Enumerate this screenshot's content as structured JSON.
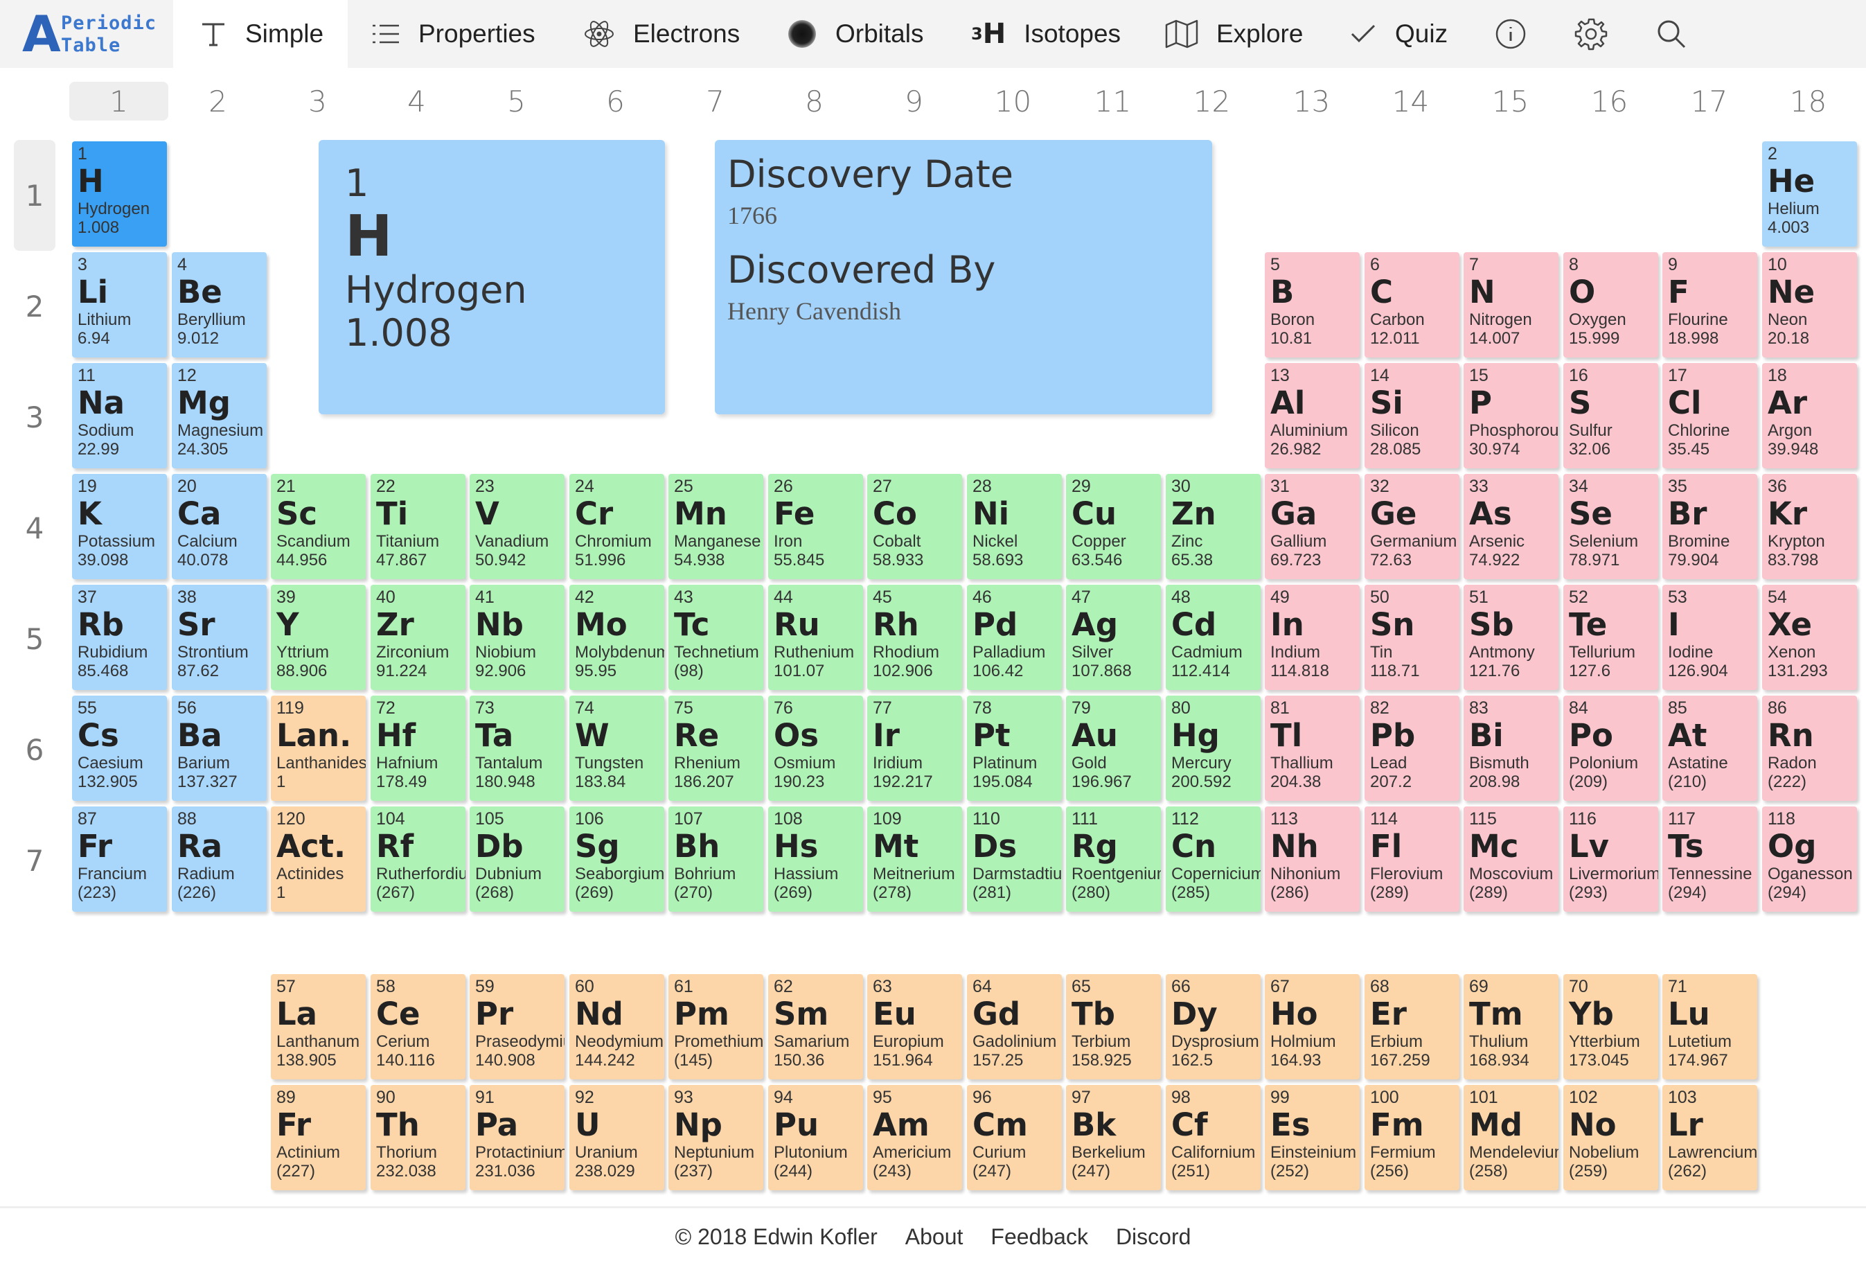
{
  "logo": {
    "letter": "A",
    "line1": "Periodic",
    "line2": "Table"
  },
  "nav": {
    "simple": "Simple",
    "properties": "Properties",
    "electrons": "Electrons",
    "orbitals": "Orbitals",
    "isotopes_sup": "3",
    "isotopes_h": "H",
    "isotopes": "Isotopes",
    "explore": "Explore",
    "quiz": "Quiz"
  },
  "groups": [
    "1",
    "2",
    "3",
    "4",
    "5",
    "6",
    "7",
    "8",
    "9",
    "10",
    "11",
    "12",
    "13",
    "14",
    "15",
    "16",
    "17",
    "18"
  ],
  "periods": [
    "1",
    "2",
    "3",
    "4",
    "5",
    "6",
    "7"
  ],
  "selected": {
    "number": "1",
    "symbol": "H",
    "name": "Hydrogen",
    "mass": "1.008"
  },
  "properties": {
    "label1": "Discovery Date",
    "value1": "1766",
    "label2": "Discovered By",
    "value2": "Henry Cavendish"
  },
  "colors": {
    "s_block": "#a9d6fb",
    "selected": "#3aa0f3",
    "d_block": "#aef2b6",
    "p_block": "#fac5cd",
    "f_block": "#fcd6a8",
    "logo": "#2d63b8"
  },
  "elements": [
    {
      "n": "1",
      "s": "H",
      "name": "Hydrogen",
      "m": "1.008",
      "period": 1,
      "group": 1,
      "cat": "s"
    },
    {
      "n": "2",
      "s": "He",
      "name": "Helium",
      "m": "4.003",
      "period": 1,
      "group": 18,
      "cat": "s"
    },
    {
      "n": "3",
      "s": "Li",
      "name": "Lithium",
      "m": "6.94",
      "period": 2,
      "group": 1,
      "cat": "s"
    },
    {
      "n": "4",
      "s": "Be",
      "name": "Beryllium",
      "m": "9.012",
      "period": 2,
      "group": 2,
      "cat": "s"
    },
    {
      "n": "5",
      "s": "B",
      "name": "Boron",
      "m": "10.81",
      "period": 2,
      "group": 13,
      "cat": "p"
    },
    {
      "n": "6",
      "s": "C",
      "name": "Carbon",
      "m": "12.011",
      "period": 2,
      "group": 14,
      "cat": "p"
    },
    {
      "n": "7",
      "s": "N",
      "name": "Nitrogen",
      "m": "14.007",
      "period": 2,
      "group": 15,
      "cat": "p"
    },
    {
      "n": "8",
      "s": "O",
      "name": "Oxygen",
      "m": "15.999",
      "period": 2,
      "group": 16,
      "cat": "p"
    },
    {
      "n": "9",
      "s": "F",
      "name": "Flourine",
      "m": "18.998",
      "period": 2,
      "group": 17,
      "cat": "p"
    },
    {
      "n": "10",
      "s": "Ne",
      "name": "Neon",
      "m": "20.18",
      "period": 2,
      "group": 18,
      "cat": "p"
    },
    {
      "n": "11",
      "s": "Na",
      "name": "Sodium",
      "m": "22.99",
      "period": 3,
      "group": 1,
      "cat": "s"
    },
    {
      "n": "12",
      "s": "Mg",
      "name": "Magnesium",
      "m": "24.305",
      "period": 3,
      "group": 2,
      "cat": "s"
    },
    {
      "n": "13",
      "s": "Al",
      "name": "Aluminium",
      "m": "26.982",
      "period": 3,
      "group": 13,
      "cat": "p"
    },
    {
      "n": "14",
      "s": "Si",
      "name": "Silicon",
      "m": "28.085",
      "period": 3,
      "group": 14,
      "cat": "p"
    },
    {
      "n": "15",
      "s": "P",
      "name": "Phosphorous",
      "m": "30.974",
      "period": 3,
      "group": 15,
      "cat": "p"
    },
    {
      "n": "16",
      "s": "S",
      "name": "Sulfur",
      "m": "32.06",
      "period": 3,
      "group": 16,
      "cat": "p"
    },
    {
      "n": "17",
      "s": "Cl",
      "name": "Chlorine",
      "m": "35.45",
      "period": 3,
      "group": 17,
      "cat": "p"
    },
    {
      "n": "18",
      "s": "Ar",
      "name": "Argon",
      "m": "39.948",
      "period": 3,
      "group": 18,
      "cat": "p"
    },
    {
      "n": "19",
      "s": "K",
      "name": "Potassium",
      "m": "39.098",
      "period": 4,
      "group": 1,
      "cat": "s"
    },
    {
      "n": "20",
      "s": "Ca",
      "name": "Calcium",
      "m": "40.078",
      "period": 4,
      "group": 2,
      "cat": "s"
    },
    {
      "n": "21",
      "s": "Sc",
      "name": "Scandium",
      "m": "44.956",
      "period": 4,
      "group": 3,
      "cat": "d"
    },
    {
      "n": "22",
      "s": "Ti",
      "name": "Titanium",
      "m": "47.867",
      "period": 4,
      "group": 4,
      "cat": "d"
    },
    {
      "n": "23",
      "s": "V",
      "name": "Vanadium",
      "m": "50.942",
      "period": 4,
      "group": 5,
      "cat": "d"
    },
    {
      "n": "24",
      "s": "Cr",
      "name": "Chromium",
      "m": "51.996",
      "period": 4,
      "group": 6,
      "cat": "d"
    },
    {
      "n": "25",
      "s": "Mn",
      "name": "Manganese",
      "m": "54.938",
      "period": 4,
      "group": 7,
      "cat": "d"
    },
    {
      "n": "26",
      "s": "Fe",
      "name": "Iron",
      "m": "55.845",
      "period": 4,
      "group": 8,
      "cat": "d"
    },
    {
      "n": "27",
      "s": "Co",
      "name": "Cobalt",
      "m": "58.933",
      "period": 4,
      "group": 9,
      "cat": "d"
    },
    {
      "n": "28",
      "s": "Ni",
      "name": "Nickel",
      "m": "58.693",
      "period": 4,
      "group": 10,
      "cat": "d"
    },
    {
      "n": "29",
      "s": "Cu",
      "name": "Copper",
      "m": "63.546",
      "period": 4,
      "group": 11,
      "cat": "d"
    },
    {
      "n": "30",
      "s": "Zn",
      "name": "Zinc",
      "m": "65.38",
      "period": 4,
      "group": 12,
      "cat": "d"
    },
    {
      "n": "31",
      "s": "Ga",
      "name": "Gallium",
      "m": "69.723",
      "period": 4,
      "group": 13,
      "cat": "p"
    },
    {
      "n": "32",
      "s": "Ge",
      "name": "Germanium",
      "m": "72.63",
      "period": 4,
      "group": 14,
      "cat": "p"
    },
    {
      "n": "33",
      "s": "As",
      "name": "Arsenic",
      "m": "74.922",
      "period": 4,
      "group": 15,
      "cat": "p"
    },
    {
      "n": "34",
      "s": "Se",
      "name": "Selenium",
      "m": "78.971",
      "period": 4,
      "group": 16,
      "cat": "p"
    },
    {
      "n": "35",
      "s": "Br",
      "name": "Bromine",
      "m": "79.904",
      "period": 4,
      "group": 17,
      "cat": "p"
    },
    {
      "n": "36",
      "s": "Kr",
      "name": "Krypton",
      "m": "83.798",
      "period": 4,
      "group": 18,
      "cat": "p"
    },
    {
      "n": "37",
      "s": "Rb",
      "name": "Rubidium",
      "m": "85.468",
      "period": 5,
      "group": 1,
      "cat": "s"
    },
    {
      "n": "38",
      "s": "Sr",
      "name": "Strontium",
      "m": "87.62",
      "period": 5,
      "group": 2,
      "cat": "s"
    },
    {
      "n": "39",
      "s": "Y",
      "name": "Yttrium",
      "m": "88.906",
      "period": 5,
      "group": 3,
      "cat": "d"
    },
    {
      "n": "40",
      "s": "Zr",
      "name": "Zirconium",
      "m": "91.224",
      "period": 5,
      "group": 4,
      "cat": "d"
    },
    {
      "n": "41",
      "s": "Nb",
      "name": "Niobium",
      "m": "92.906",
      "period": 5,
      "group": 5,
      "cat": "d"
    },
    {
      "n": "42",
      "s": "Mo",
      "name": "Molybdenum",
      "m": "95.95",
      "period": 5,
      "group": 6,
      "cat": "d"
    },
    {
      "n": "43",
      "s": "Tc",
      "name": "Technetium",
      "m": "(98)",
      "period": 5,
      "group": 7,
      "cat": "d"
    },
    {
      "n": "44",
      "s": "Ru",
      "name": "Ruthenium",
      "m": "101.07",
      "period": 5,
      "group": 8,
      "cat": "d"
    },
    {
      "n": "45",
      "s": "Rh",
      "name": "Rhodium",
      "m": "102.906",
      "period": 5,
      "group": 9,
      "cat": "d"
    },
    {
      "n": "46",
      "s": "Pd",
      "name": "Palladium",
      "m": "106.42",
      "period": 5,
      "group": 10,
      "cat": "d"
    },
    {
      "n": "47",
      "s": "Ag",
      "name": "Silver",
      "m": "107.868",
      "period": 5,
      "group": 11,
      "cat": "d"
    },
    {
      "n": "48",
      "s": "Cd",
      "name": "Cadmium",
      "m": "112.414",
      "period": 5,
      "group": 12,
      "cat": "d"
    },
    {
      "n": "49",
      "s": "In",
      "name": "Indium",
      "m": "114.818",
      "period": 5,
      "group": 13,
      "cat": "p"
    },
    {
      "n": "50",
      "s": "Sn",
      "name": "Tin",
      "m": "118.71",
      "period": 5,
      "group": 14,
      "cat": "p"
    },
    {
      "n": "51",
      "s": "Sb",
      "name": "Antmony",
      "m": "121.76",
      "period": 5,
      "group": 15,
      "cat": "p"
    },
    {
      "n": "52",
      "s": "Te",
      "name": "Tellurium",
      "m": "127.6",
      "period": 5,
      "group": 16,
      "cat": "p"
    },
    {
      "n": "53",
      "s": "I",
      "name": "Iodine",
      "m": "126.904",
      "period": 5,
      "group": 17,
      "cat": "p"
    },
    {
      "n": "54",
      "s": "Xe",
      "name": "Xenon",
      "m": "131.293",
      "period": 5,
      "group": 18,
      "cat": "p"
    },
    {
      "n": "55",
      "s": "Cs",
      "name": "Caesium",
      "m": "132.905",
      "period": 6,
      "group": 1,
      "cat": "s"
    },
    {
      "n": "56",
      "s": "Ba",
      "name": "Barium",
      "m": "137.327",
      "period": 6,
      "group": 2,
      "cat": "s"
    },
    {
      "n": "119",
      "s": "Lan.",
      "name": "Lanthanides",
      "m": "1",
      "period": 6,
      "group": 3,
      "cat": "f"
    },
    {
      "n": "72",
      "s": "Hf",
      "name": "Hafnium",
      "m": "178.49",
      "period": 6,
      "group": 4,
      "cat": "d"
    },
    {
      "n": "73",
      "s": "Ta",
      "name": "Tantalum",
      "m": "180.948",
      "period": 6,
      "group": 5,
      "cat": "d"
    },
    {
      "n": "74",
      "s": "W",
      "name": "Tungsten",
      "m": "183.84",
      "period": 6,
      "group": 6,
      "cat": "d"
    },
    {
      "n": "75",
      "s": "Re",
      "name": "Rhenium",
      "m": "186.207",
      "period": 6,
      "group": 7,
      "cat": "d"
    },
    {
      "n": "76",
      "s": "Os",
      "name": "Osmium",
      "m": "190.23",
      "period": 6,
      "group": 8,
      "cat": "d"
    },
    {
      "n": "77",
      "s": "Ir",
      "name": "Iridium",
      "m": "192.217",
      "period": 6,
      "group": 9,
      "cat": "d"
    },
    {
      "n": "78",
      "s": "Pt",
      "name": "Platinum",
      "m": "195.084",
      "period": 6,
      "group": 10,
      "cat": "d"
    },
    {
      "n": "79",
      "s": "Au",
      "name": "Gold",
      "m": "196.967",
      "period": 6,
      "group": 11,
      "cat": "d"
    },
    {
      "n": "80",
      "s": "Hg",
      "name": "Mercury",
      "m": "200.592",
      "period": 6,
      "group": 12,
      "cat": "d"
    },
    {
      "n": "81",
      "s": "Tl",
      "name": "Thallium",
      "m": "204.38",
      "period": 6,
      "group": 13,
      "cat": "p"
    },
    {
      "n": "82",
      "s": "Pb",
      "name": "Lead",
      "m": "207.2",
      "period": 6,
      "group": 14,
      "cat": "p"
    },
    {
      "n": "83",
      "s": "Bi",
      "name": "Bismuth",
      "m": "208.98",
      "period": 6,
      "group": 15,
      "cat": "p"
    },
    {
      "n": "84",
      "s": "Po",
      "name": "Polonium",
      "m": "(209)",
      "period": 6,
      "group": 16,
      "cat": "p"
    },
    {
      "n": "85",
      "s": "At",
      "name": "Astatine",
      "m": "(210)",
      "period": 6,
      "group": 17,
      "cat": "p"
    },
    {
      "n": "86",
      "s": "Rn",
      "name": "Radon",
      "m": "(222)",
      "period": 6,
      "group": 18,
      "cat": "p"
    },
    {
      "n": "87",
      "s": "Fr",
      "name": "Francium",
      "m": "(223)",
      "period": 7,
      "group": 1,
      "cat": "s"
    },
    {
      "n": "88",
      "s": "Ra",
      "name": "Radium",
      "m": "(226)",
      "period": 7,
      "group": 2,
      "cat": "s"
    },
    {
      "n": "120",
      "s": "Act.",
      "name": "Actinides",
      "m": "1",
      "period": 7,
      "group": 3,
      "cat": "f"
    },
    {
      "n": "104",
      "s": "Rf",
      "name": "Rutherfordium",
      "m": "(267)",
      "period": 7,
      "group": 4,
      "cat": "d"
    },
    {
      "n": "105",
      "s": "Db",
      "name": "Dubnium",
      "m": "(268)",
      "period": 7,
      "group": 5,
      "cat": "d"
    },
    {
      "n": "106",
      "s": "Sg",
      "name": "Seaborgium",
      "m": "(269)",
      "period": 7,
      "group": 6,
      "cat": "d"
    },
    {
      "n": "107",
      "s": "Bh",
      "name": "Bohrium",
      "m": "(270)",
      "period": 7,
      "group": 7,
      "cat": "d"
    },
    {
      "n": "108",
      "s": "Hs",
      "name": "Hassium",
      "m": "(269)",
      "period": 7,
      "group": 8,
      "cat": "d"
    },
    {
      "n": "109",
      "s": "Mt",
      "name": "Meitnerium",
      "m": "(278)",
      "period": 7,
      "group": 9,
      "cat": "d"
    },
    {
      "n": "110",
      "s": "Ds",
      "name": "Darmstadtium",
      "m": "(281)",
      "period": 7,
      "group": 10,
      "cat": "d"
    },
    {
      "n": "111",
      "s": "Rg",
      "name": "Roentgenium",
      "m": "(280)",
      "period": 7,
      "group": 11,
      "cat": "d"
    },
    {
      "n": "112",
      "s": "Cn",
      "name": "Copernicium",
      "m": "(285)",
      "period": 7,
      "group": 12,
      "cat": "d"
    },
    {
      "n": "113",
      "s": "Nh",
      "name": "Nihonium",
      "m": "(286)",
      "period": 7,
      "group": 13,
      "cat": "p"
    },
    {
      "n": "114",
      "s": "Fl",
      "name": "Flerovium",
      "m": "(289)",
      "period": 7,
      "group": 14,
      "cat": "p"
    },
    {
      "n": "115",
      "s": "Mc",
      "name": "Moscovium",
      "m": "(289)",
      "period": 7,
      "group": 15,
      "cat": "p"
    },
    {
      "n": "116",
      "s": "Lv",
      "name": "Livermorium",
      "m": "(293)",
      "period": 7,
      "group": 16,
      "cat": "p"
    },
    {
      "n": "117",
      "s": "Ts",
      "name": "Tennessine",
      "m": "(294)",
      "period": 7,
      "group": 17,
      "cat": "p"
    },
    {
      "n": "118",
      "s": "Og",
      "name": "Oganesson",
      "m": "(294)",
      "period": 7,
      "group": 18,
      "cat": "p"
    },
    {
      "n": "57",
      "s": "La",
      "name": "Lanthanum",
      "m": "138.905",
      "period": 9,
      "group": 3,
      "cat": "f"
    },
    {
      "n": "58",
      "s": "Ce",
      "name": "Cerium",
      "m": "140.116",
      "period": 9,
      "group": 4,
      "cat": "f"
    },
    {
      "n": "59",
      "s": "Pr",
      "name": "Praseodymium",
      "m": "140.908",
      "period": 9,
      "group": 5,
      "cat": "f"
    },
    {
      "n": "60",
      "s": "Nd",
      "name": "Neodymium",
      "m": "144.242",
      "period": 9,
      "group": 6,
      "cat": "f"
    },
    {
      "n": "61",
      "s": "Pm",
      "name": "Promethium",
      "m": "(145)",
      "period": 9,
      "group": 7,
      "cat": "f"
    },
    {
      "n": "62",
      "s": "Sm",
      "name": "Samarium",
      "m": "150.36",
      "period": 9,
      "group": 8,
      "cat": "f"
    },
    {
      "n": "63",
      "s": "Eu",
      "name": "Europium",
      "m": "151.964",
      "period": 9,
      "group": 9,
      "cat": "f"
    },
    {
      "n": "64",
      "s": "Gd",
      "name": "Gadolinium",
      "m": "157.25",
      "period": 9,
      "group": 10,
      "cat": "f"
    },
    {
      "n": "65",
      "s": "Tb",
      "name": "Terbium",
      "m": "158.925",
      "period": 9,
      "group": 11,
      "cat": "f"
    },
    {
      "n": "66",
      "s": "Dy",
      "name": "Dysprosium",
      "m": "162.5",
      "period": 9,
      "group": 12,
      "cat": "f"
    },
    {
      "n": "67",
      "s": "Ho",
      "name": "Holmium",
      "m": "164.93",
      "period": 9,
      "group": 13,
      "cat": "f"
    },
    {
      "n": "68",
      "s": "Er",
      "name": "Erbium",
      "m": "167.259",
      "period": 9,
      "group": 14,
      "cat": "f"
    },
    {
      "n": "69",
      "s": "Tm",
      "name": "Thulium",
      "m": "168.934",
      "period": 9,
      "group": 15,
      "cat": "f"
    },
    {
      "n": "70",
      "s": "Yb",
      "name": "Ytterbium",
      "m": "173.045",
      "period": 9,
      "group": 16,
      "cat": "f"
    },
    {
      "n": "71",
      "s": "Lu",
      "name": "Lutetium",
      "m": "174.967",
      "period": 9,
      "group": 17,
      "cat": "f"
    },
    {
      "n": "89",
      "s": "Fr",
      "name": "Actinium",
      "m": "(227)",
      "period": 10,
      "group": 3,
      "cat": "f"
    },
    {
      "n": "90",
      "s": "Th",
      "name": "Thorium",
      "m": "232.038",
      "period": 10,
      "group": 4,
      "cat": "f"
    },
    {
      "n": "91",
      "s": "Pa",
      "name": "Protactinium",
      "m": "231.036",
      "period": 10,
      "group": 5,
      "cat": "f"
    },
    {
      "n": "92",
      "s": "U",
      "name": "Uranium",
      "m": "238.029",
      "period": 10,
      "group": 6,
      "cat": "f"
    },
    {
      "n": "93",
      "s": "Np",
      "name": "Neptunium",
      "m": "(237)",
      "period": 10,
      "group": 7,
      "cat": "f"
    },
    {
      "n": "94",
      "s": "Pu",
      "name": "Plutonium",
      "m": "(244)",
      "period": 10,
      "group": 8,
      "cat": "f"
    },
    {
      "n": "95",
      "s": "Am",
      "name": "Americium",
      "m": "(243)",
      "period": 10,
      "group": 9,
      "cat": "f"
    },
    {
      "n": "96",
      "s": "Cm",
      "name": "Curium",
      "m": "(247)",
      "period": 10,
      "group": 10,
      "cat": "f"
    },
    {
      "n": "97",
      "s": "Bk",
      "name": "Berkelium",
      "m": "(247)",
      "period": 10,
      "group": 11,
      "cat": "f"
    },
    {
      "n": "98",
      "s": "Cf",
      "name": "Californium",
      "m": "(251)",
      "period": 10,
      "group": 12,
      "cat": "f"
    },
    {
      "n": "99",
      "s": "Es",
      "name": "Einsteinium",
      "m": "(252)",
      "period": 10,
      "group": 13,
      "cat": "f"
    },
    {
      "n": "100",
      "s": "Fm",
      "name": "Fermium",
      "m": "(256)",
      "period": 10,
      "group": 14,
      "cat": "f"
    },
    {
      "n": "101",
      "s": "Md",
      "name": "Mendelevium",
      "m": "(258)",
      "period": 10,
      "group": 15,
      "cat": "f"
    },
    {
      "n": "102",
      "s": "No",
      "name": "Nobelium",
      "m": "(259)",
      "period": 10,
      "group": 16,
      "cat": "f"
    },
    {
      "n": "103",
      "s": "Lr",
      "name": "Lawrencium",
      "m": "(262)",
      "period": 10,
      "group": 17,
      "cat": "f"
    }
  ],
  "footer": {
    "copyright": "© 2018 Edwin Kofler",
    "about": "About",
    "feedback": "Feedback",
    "discord": "Discord"
  }
}
